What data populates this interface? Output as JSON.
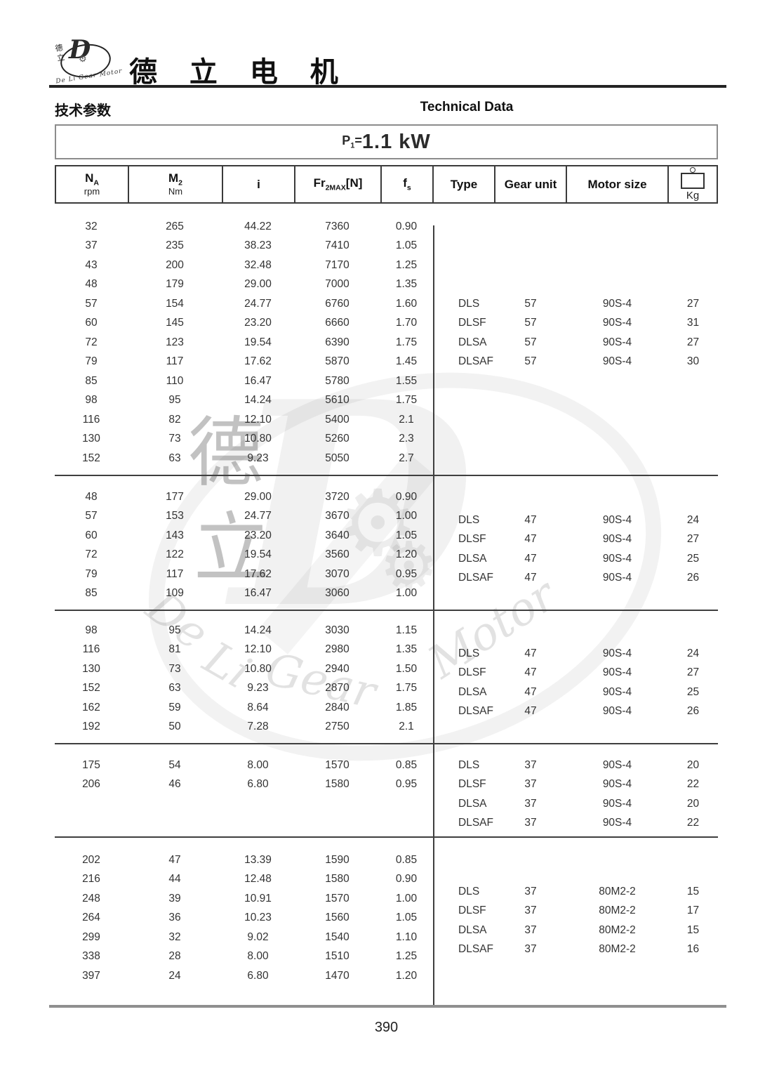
{
  "brand": {
    "logo": {
      "cjk_top": "德",
      "cjk_bottom": "立",
      "d_letter": "D",
      "gear_glyph": "⚙",
      "arc_text": "De Li Gear Motor"
    },
    "title_cjk": "德 立 电 机"
  },
  "header": {
    "left_label": "技术参数",
    "right_label": "Technical Data"
  },
  "power_title": {
    "prefix": "P",
    "prefix_sub": "1",
    "equals": "=",
    "value": "1.1 kW"
  },
  "columns": {
    "na": {
      "main": "N",
      "sub": "A",
      "unit": "rpm"
    },
    "m2": {
      "main": "M",
      "sub": "2",
      "unit": "Nm"
    },
    "i": {
      "main": "i"
    },
    "fr": {
      "main": "Fr",
      "sub": "2MAX",
      "suffix": "[N]"
    },
    "fs": {
      "main": "f",
      "sub": "s"
    },
    "type": {
      "label": "Type"
    },
    "gear": {
      "label": "Gear unit"
    },
    "motor": {
      "label": "Motor size"
    },
    "kg": {
      "label": "Kg"
    }
  },
  "table": {
    "blocks": [
      {
        "rows": [
          [
            "32",
            "265",
            "44.22",
            "7360",
            "0.90"
          ],
          [
            "37",
            "235",
            "38.23",
            "7410",
            "1.05"
          ],
          [
            "43",
            "200",
            "32.48",
            "7170",
            "1.25"
          ],
          [
            "48",
            "179",
            "29.00",
            "7000",
            "1.35"
          ],
          [
            "57",
            "154",
            "24.77",
            "6760",
            "1.60"
          ],
          [
            "60",
            "145",
            "23.20",
            "6660",
            "1.70"
          ],
          [
            "72",
            "123",
            "19.54",
            "6390",
            "1.75"
          ],
          [
            "79",
            "117",
            "17.62",
            "5870",
            "1.45"
          ],
          [
            "85",
            "110",
            "16.47",
            "5780",
            "1.55"
          ],
          [
            "98",
            "95",
            "14.24",
            "5610",
            "1.75"
          ],
          [
            "116",
            "82",
            "12.10",
            "5400",
            "2.1"
          ],
          [
            "130",
            "73",
            "10.80",
            "5260",
            "2.3"
          ],
          [
            "152",
            "63",
            "9.23",
            "5050",
            "2.7"
          ]
        ],
        "types": [
          [
            "DLS",
            "57",
            "90S-4",
            "27"
          ],
          [
            "DLSF",
            "57",
            "90S-4",
            "31"
          ],
          [
            "DLSA",
            "57",
            "90S-4",
            "27"
          ],
          [
            "DLSAF",
            "57",
            "90S-4",
            "30"
          ]
        ]
      },
      {
        "rows": [
          [
            "48",
            "177",
            "29.00",
            "3720",
            "0.90"
          ],
          [
            "57",
            "153",
            "24.77",
            "3670",
            "1.00"
          ],
          [
            "60",
            "143",
            "23.20",
            "3640",
            "1.05"
          ],
          [
            "72",
            "122",
            "19.54",
            "3560",
            "1.20"
          ],
          [
            "79",
            "117",
            "17.62",
            "3070",
            "0.95"
          ],
          [
            "85",
            "109",
            "16.47",
            "3060",
            "1.00"
          ]
        ],
        "types": [
          [
            "DLS",
            "47",
            "90S-4",
            "24"
          ],
          [
            "DLSF",
            "47",
            "90S-4",
            "27"
          ],
          [
            "DLSA",
            "47",
            "90S-4",
            "25"
          ],
          [
            "DLSAF",
            "47",
            "90S-4",
            "26"
          ]
        ]
      },
      {
        "rows": [
          [
            "98",
            "95",
            "14.24",
            "3030",
            "1.15"
          ],
          [
            "116",
            "81",
            "12.10",
            "2980",
            "1.35"
          ],
          [
            "130",
            "73",
            "10.80",
            "2940",
            "1.50"
          ],
          [
            "152",
            "63",
            "9.23",
            "2870",
            "1.75"
          ],
          [
            "162",
            "59",
            "8.64",
            "2840",
            "1.85"
          ],
          [
            "192",
            "50",
            "7.28",
            "2750",
            "2.1"
          ]
        ],
        "types": [
          [
            "DLS",
            "47",
            "90S-4",
            "24"
          ],
          [
            "DLSF",
            "47",
            "90S-4",
            "27"
          ],
          [
            "DLSA",
            "47",
            "90S-4",
            "25"
          ],
          [
            "DLSAF",
            "47",
            "90S-4",
            "26"
          ]
        ]
      },
      {
        "rows": [
          [
            "175",
            "54",
            "8.00",
            "1570",
            "0.85"
          ],
          [
            "206",
            "46",
            "6.80",
            "1580",
            "0.95"
          ]
        ],
        "types": [
          [
            "DLS",
            "37",
            "90S-4",
            "20"
          ],
          [
            "DLSF",
            "37",
            "90S-4",
            "22"
          ],
          [
            "DLSA",
            "37",
            "90S-4",
            "20"
          ],
          [
            "DLSAF",
            "37",
            "90S-4",
            "22"
          ]
        ]
      },
      {
        "rows": [
          [
            "202",
            "47",
            "13.39",
            "1590",
            "0.85"
          ],
          [
            "216",
            "44",
            "12.48",
            "1580",
            "0.90"
          ],
          [
            "248",
            "39",
            "10.91",
            "1570",
            "1.00"
          ],
          [
            "264",
            "36",
            "10.23",
            "1560",
            "1.05"
          ],
          [
            "299",
            "32",
            "9.02",
            "1540",
            "1.10"
          ],
          [
            "338",
            "28",
            "8.00",
            "1510",
            "1.25"
          ],
          [
            "397",
            "24",
            "6.80",
            "1470",
            "1.20"
          ]
        ],
        "types": [
          [
            "DLS",
            "37",
            "80M2-2",
            "15"
          ],
          [
            "DLSF",
            "37",
            "80M2-2",
            "17"
          ],
          [
            "DLSA",
            "37",
            "80M2-2",
            "15"
          ],
          [
            "DLSAF",
            "37",
            "80M2-2",
            "16"
          ]
        ]
      }
    ]
  },
  "watermark": {
    "d_letter": "D",
    "cjk_top": "德",
    "cjk_bottom": "立",
    "gear_glyph": "⚙",
    "words": [
      "De",
      "Li",
      "Gear",
      "Motor"
    ]
  },
  "footer": {
    "page_number": "390"
  },
  "colors": {
    "rule_dark": "#232323",
    "rule_gray": "#8f8f8f",
    "border_dark": "#3b3b3b",
    "box_border": "#8c8c8c"
  }
}
